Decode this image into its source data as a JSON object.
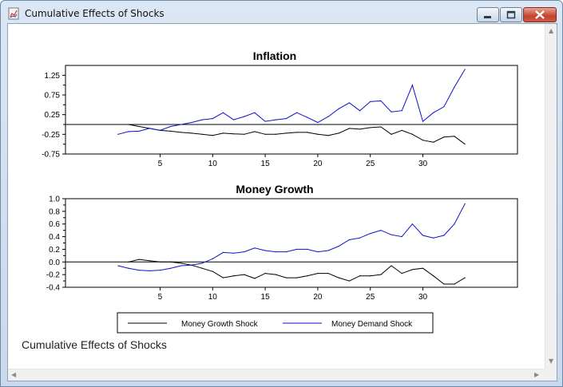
{
  "window": {
    "title": "Cumulative Effects of Shocks",
    "icons": {
      "app": "chart-icon",
      "minimize": "minimize-icon",
      "maximize": "maximize-icon",
      "close": "close-icon"
    }
  },
  "caption": "Cumulative Effects of Shocks",
  "legend": {
    "series1": "Money Growth Shock",
    "series2": "Money Demand Shock"
  },
  "colors": {
    "series1": "#000000",
    "series2": "#1010c8",
    "close_button": "#c4432f"
  },
  "chart_data": [
    {
      "type": "line",
      "title": "Inflation",
      "x": [
        1,
        2,
        3,
        4,
        5,
        6,
        7,
        8,
        9,
        10,
        11,
        12,
        13,
        14,
        15,
        16,
        17,
        18,
        19,
        20,
        21,
        22,
        23,
        24,
        25,
        26,
        27,
        28,
        29,
        30,
        31,
        32,
        33,
        34
      ],
      "ylim": [
        -0.75,
        1.5
      ],
      "yticks": [
        -0.75,
        -0.25,
        0.25,
        0.75,
        1.25
      ],
      "ytick_labels": [
        "-0.75",
        "-0.25",
        "0.25",
        "0.75",
        "1.25"
      ],
      "xticks": [
        5,
        10,
        15,
        20,
        25,
        30
      ],
      "xtick_labels": [
        "5",
        "10",
        "15",
        "20",
        "25",
        "30"
      ],
      "zero_line": 0,
      "series": [
        {
          "name": "Money Growth Shock",
          "values": [
            null,
            0.0,
            -0.05,
            -0.1,
            -0.15,
            -0.17,
            -0.2,
            -0.22,
            -0.25,
            -0.28,
            -0.22,
            -0.24,
            -0.25,
            -0.18,
            -0.25,
            -0.25,
            -0.22,
            -0.2,
            -0.2,
            -0.25,
            -0.28,
            -0.22,
            -0.1,
            -0.12,
            -0.08,
            -0.06,
            -0.25,
            -0.15,
            -0.25,
            -0.4,
            -0.45,
            -0.32,
            -0.3,
            -0.5
          ]
        },
        {
          "name": "Money Demand Shock",
          "values": [
            -0.25,
            -0.18,
            -0.17,
            -0.1,
            -0.15,
            -0.05,
            0.0,
            0.05,
            0.12,
            0.15,
            0.3,
            0.12,
            0.2,
            0.3,
            0.08,
            0.12,
            0.15,
            0.3,
            0.18,
            0.05,
            0.2,
            0.4,
            0.55,
            0.35,
            0.58,
            0.6,
            0.32,
            0.35,
            1.0,
            0.08,
            0.3,
            0.45,
            0.95,
            1.4
          ]
        }
      ]
    },
    {
      "type": "line",
      "title": "Money Growth",
      "x": [
        1,
        2,
        3,
        4,
        5,
        6,
        7,
        8,
        9,
        10,
        11,
        12,
        13,
        14,
        15,
        16,
        17,
        18,
        19,
        20,
        21,
        22,
        23,
        24,
        25,
        26,
        27,
        28,
        29,
        30,
        31,
        32,
        33,
        34
      ],
      "ylim": [
        -0.4,
        1.0
      ],
      "yticks": [
        -0.4,
        -0.2,
        0.0,
        0.2,
        0.4,
        0.6,
        0.8,
        1.0
      ],
      "ytick_labels": [
        "-0.4",
        "-0.2",
        "0.0",
        "0.2",
        "0.4",
        "0.6",
        "0.8",
        "1.0"
      ],
      "xticks": [
        5,
        10,
        15,
        20,
        25,
        30
      ],
      "xtick_labels": [
        "5",
        "10",
        "15",
        "20",
        "25",
        "30"
      ],
      "zero_line": 0,
      "series": [
        {
          "name": "Money Growth Shock",
          "values": [
            null,
            0.0,
            0.04,
            0.02,
            0.0,
            0.0,
            -0.02,
            -0.05,
            -0.1,
            -0.15,
            -0.25,
            -0.22,
            -0.2,
            -0.26,
            -0.18,
            -0.2,
            -0.25,
            -0.25,
            -0.22,
            -0.18,
            -0.18,
            -0.25,
            -0.3,
            -0.22,
            -0.22,
            -0.2,
            -0.06,
            -0.18,
            -0.12,
            -0.1,
            -0.22,
            -0.35,
            -0.35,
            -0.25
          ]
        },
        {
          "name": "Money Demand Shock",
          "values": [
            -0.06,
            -0.1,
            -0.13,
            -0.14,
            -0.13,
            -0.1,
            -0.06,
            -0.05,
            -0.02,
            0.05,
            0.15,
            0.14,
            0.16,
            0.22,
            0.18,
            0.16,
            0.16,
            0.2,
            0.2,
            0.16,
            0.18,
            0.25,
            0.35,
            0.38,
            0.45,
            0.5,
            0.43,
            0.4,
            0.6,
            0.42,
            0.38,
            0.42,
            0.6,
            0.92
          ]
        }
      ]
    }
  ]
}
